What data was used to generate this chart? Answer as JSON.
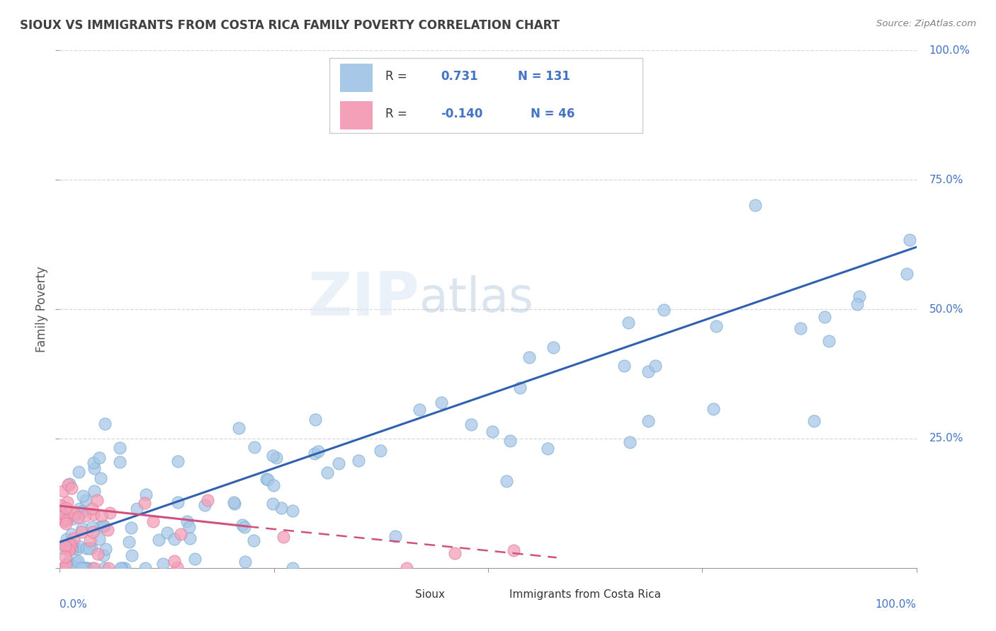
{
  "title": "SIOUX VS IMMIGRANTS FROM COSTA RICA FAMILY POVERTY CORRELATION CHART",
  "source": "Source: ZipAtlas.com",
  "ylabel": "Family Poverty",
  "watermark_part1": "ZIP",
  "watermark_part2": "atlas",
  "sioux_R": 0.731,
  "sioux_N": 131,
  "costa_rica_R": -0.14,
  "costa_rica_N": 46,
  "sioux_color": "#a8c8e8",
  "sioux_edge_color": "#7aaed0",
  "sioux_line_color": "#3060b0",
  "costa_rica_color": "#f4a0b8",
  "costa_rica_edge_color": "#e080a0",
  "costa_rica_line_color": "#d05080",
  "legend_blue_color": "#4472c4",
  "axis_color": "#4472c4",
  "grid_color": "#d8d8d8",
  "title_color": "#404040",
  "source_color": "#808080",
  "background_color": "#ffffff"
}
